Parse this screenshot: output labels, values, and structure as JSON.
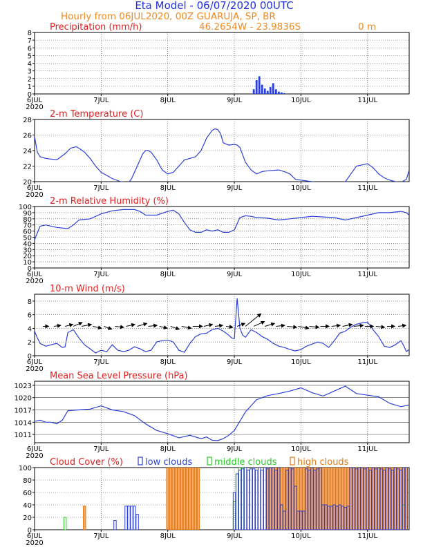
{
  "header": {
    "title": "Eta Model - 06/07/2020 00UTC",
    "subtitle": "Hourly from 06JUL2020, 00Z  GUARUJA, SP, BR",
    "location": "46.2654W - 23.9836S",
    "elevation": "0   m"
  },
  "colors": {
    "title": "#2030e0",
    "subtitle": "#f08a20",
    "panel_title": "#e02020",
    "line": "#2a3fd8",
    "bars": "#2a3fd8",
    "low": "#2a3fd8",
    "middle": "#22cc22",
    "high": "#f4a86a",
    "high_edge": "#e07a10",
    "overlap": "#9a5aa8",
    "arrow": "#000000",
    "grid": "#444444"
  },
  "x_axis": {
    "ticks": [
      {
        "t": 0,
        "label": "6JUL",
        "year": "2020"
      },
      {
        "t": 24,
        "label": "7JUL"
      },
      {
        "t": 48,
        "label": "8JUL"
      },
      {
        "t": 72,
        "label": "9JUL"
      },
      {
        "t": 96,
        "label": "10JUL"
      },
      {
        "t": 120,
        "label": "11JUL"
      }
    ],
    "range": [
      0,
      135
    ]
  },
  "chart_data": [
    {
      "id": "precip",
      "type": "bar",
      "title": "Precipitation (mm/h)",
      "ylim": [
        0,
        8
      ],
      "yticks": [
        0,
        1,
        2,
        3,
        4,
        5,
        6,
        7,
        8
      ],
      "x": [
        79,
        80,
        81,
        82,
        83,
        84,
        85,
        86,
        87,
        88,
        89,
        90
      ],
      "values": [
        0.6,
        1.8,
        2.3,
        1.2,
        0.7,
        0.4,
        0.9,
        1.4,
        0.6,
        0.3,
        0.2,
        0.1
      ]
    },
    {
      "id": "temp",
      "type": "line",
      "title": "2-m Temperature (C)",
      "ylim": [
        20,
        28
      ],
      "yticks": [
        20,
        22,
        24,
        26,
        28
      ],
      "x": [
        0,
        1,
        2,
        4,
        8,
        11,
        13,
        15,
        16,
        18,
        20,
        22,
        24,
        26,
        28,
        31,
        34,
        35,
        38,
        39,
        40,
        41,
        42,
        44,
        46,
        48,
        50,
        52,
        54,
        56,
        58,
        60,
        62,
        64,
        65,
        66,
        67,
        68,
        70,
        72,
        73,
        74,
        76,
        78,
        80,
        82,
        84,
        88,
        89,
        90,
        92,
        94,
        96,
        100,
        104,
        108,
        110,
        112,
        114,
        116,
        120,
        122,
        124,
        126,
        128,
        130,
        132,
        134,
        135
      ],
      "values": [
        25.8,
        23.8,
        23.2,
        23.0,
        22.8,
        23.6,
        24.3,
        24.5,
        24.3,
        23.8,
        23.0,
        22.0,
        21.2,
        20.8,
        20.4,
        20.0,
        19.9,
        20.4,
        22.8,
        23.6,
        24.0,
        24.0,
        23.8,
        22.8,
        21.5,
        21.0,
        21.2,
        22.0,
        22.8,
        23.0,
        23.2,
        24.0,
        25.6,
        26.6,
        26.8,
        26.7,
        26.2,
        25.0,
        24.7,
        24.8,
        24.7,
        24.4,
        22.5,
        21.5,
        21.0,
        21.3,
        21.4,
        21.5,
        21.4,
        21.3,
        21.0,
        20.3,
        20.2,
        20.0,
        19.8,
        19.6,
        19.8,
        20.0,
        21.0,
        22.0,
        22.3,
        21.8,
        21.0,
        20.5,
        20.2,
        20.0,
        19.9,
        20.3,
        21.5
      ]
    },
    {
      "id": "rh",
      "type": "line",
      "title": "2-m Relative Humidity (%)",
      "ylim": [
        0,
        100
      ],
      "yticks": [
        0,
        10,
        20,
        30,
        40,
        50,
        60,
        70,
        80,
        90,
        100
      ],
      "x": [
        0,
        2,
        4,
        8,
        12,
        14,
        16,
        20,
        24,
        28,
        32,
        36,
        38,
        40,
        44,
        48,
        50,
        52,
        54,
        56,
        58,
        60,
        62,
        64,
        66,
        68,
        70,
        72,
        74,
        76,
        78,
        80,
        84,
        88,
        92,
        96,
        100,
        104,
        108,
        112,
        116,
        120,
        124,
        128,
        132,
        134,
        135
      ],
      "values": [
        46,
        68,
        70,
        66,
        64,
        70,
        78,
        80,
        88,
        93,
        95,
        95,
        92,
        86,
        86,
        92,
        94,
        88,
        74,
        62,
        58,
        58,
        62,
        60,
        62,
        58,
        58,
        62,
        82,
        85,
        84,
        82,
        81,
        78,
        80,
        82,
        84,
        83,
        82,
        78,
        82,
        86,
        90,
        90,
        92,
        90,
        86
      ]
    },
    {
      "id": "wind",
      "type": "line",
      "title": "10-m Wind (m/s)",
      "ylim": [
        0,
        9
      ],
      "yticks": [
        0,
        2,
        4,
        6,
        8
      ],
      "x": [
        0,
        1,
        2,
        4,
        6,
        8,
        10,
        11,
        12,
        14,
        16,
        18,
        20,
        22,
        24,
        26,
        28,
        30,
        32,
        34,
        36,
        38,
        40,
        42,
        44,
        46,
        48,
        50,
        52,
        54,
        56,
        58,
        60,
        62,
        64,
        66,
        68,
        70,
        71,
        72,
        73,
        74,
        75,
        76,
        78,
        80,
        82,
        84,
        86,
        88,
        90,
        92,
        94,
        96,
        98,
        100,
        102,
        104,
        106,
        108,
        110,
        112,
        114,
        116,
        118,
        120,
        122,
        124,
        126,
        128,
        130,
        132,
        133,
        134,
        135
      ],
      "values": [
        3.6,
        2.6,
        1.8,
        1.4,
        1.6,
        1.8,
        1.2,
        1.3,
        3.4,
        3.8,
        2.6,
        1.6,
        1.0,
        0.4,
        0.8,
        0.6,
        1.6,
        0.8,
        0.6,
        0.8,
        1.3,
        1.0,
        0.6,
        0.8,
        2.0,
        2.2,
        2.3,
        2.0,
        0.8,
        0.5,
        1.8,
        2.8,
        3.2,
        3.3,
        3.8,
        4.0,
        3.6,
        3.0,
        2.6,
        2.5,
        8.4,
        4.0,
        3.0,
        2.7,
        3.8,
        3.4,
        2.8,
        2.4,
        1.8,
        1.4,
        1.2,
        0.9,
        0.7,
        0.9,
        1.4,
        1.7,
        2.0,
        1.8,
        1.2,
        2.2,
        3.3,
        3.6,
        4.2,
        4.6,
        4.8,
        4.9,
        3.8,
        2.8,
        1.4,
        1.2,
        1.6,
        2.2,
        1.5,
        0.6,
        0.9
      ],
      "arrows": [
        {
          "t": 3,
          "u": 0.6,
          "v": 0.0
        },
        {
          "t": 7,
          "u": 0.7,
          "v": 0.1
        },
        {
          "t": 11,
          "u": 0.8,
          "v": 0.2
        },
        {
          "t": 14,
          "u": 0.9,
          "v": 0.4
        },
        {
          "t": 17,
          "u": 1.0,
          "v": 0.2
        },
        {
          "t": 21,
          "u": 0.9,
          "v": -0.2
        },
        {
          "t": 25,
          "u": 0.8,
          "v": -0.3
        },
        {
          "t": 29,
          "u": 0.9,
          "v": -0.1
        },
        {
          "t": 33,
          "u": 0.9,
          "v": 0.2
        },
        {
          "t": 37,
          "u": 1.0,
          "v": 0.3
        },
        {
          "t": 41,
          "u": 0.9,
          "v": 0.1
        },
        {
          "t": 45,
          "u": 0.8,
          "v": -0.2
        },
        {
          "t": 49,
          "u": 0.9,
          "v": -0.3
        },
        {
          "t": 53,
          "u": 1.0,
          "v": -0.2
        },
        {
          "t": 57,
          "u": 1.0,
          "v": 0.0
        },
        {
          "t": 61,
          "u": 0.9,
          "v": 0.2
        },
        {
          "t": 65,
          "u": 0.8,
          "v": 0.1
        },
        {
          "t": 69,
          "u": 0.7,
          "v": -0.1
        },
        {
          "t": 73,
          "u": 0.8,
          "v": 0.3
        },
        {
          "t": 76,
          "u": 1.6,
          "v": 1.3
        },
        {
          "t": 79,
          "u": 1.1,
          "v": 0.5
        },
        {
          "t": 83,
          "u": 1.0,
          "v": 0.3
        },
        {
          "t": 87,
          "u": 0.9,
          "v": 0.1
        },
        {
          "t": 91,
          "u": 1.0,
          "v": -0.1
        },
        {
          "t": 95,
          "u": 1.1,
          "v": -0.2
        },
        {
          "t": 99,
          "u": 1.0,
          "v": -0.1
        },
        {
          "t": 103,
          "u": 0.9,
          "v": 0.0
        },
        {
          "t": 107,
          "u": 0.9,
          "v": 0.1
        },
        {
          "t": 111,
          "u": 1.0,
          "v": 0.2
        },
        {
          "t": 115,
          "u": 1.0,
          "v": 0.1
        },
        {
          "t": 119,
          "u": 0.9,
          "v": 0.0
        },
        {
          "t": 123,
          "u": 0.9,
          "v": -0.1
        },
        {
          "t": 127,
          "u": 0.8,
          "v": 0.0
        },
        {
          "t": 131,
          "u": 0.8,
          "v": 0.1
        }
      ]
    },
    {
      "id": "mslp",
      "type": "line",
      "title": "Mean Sea Level Pressure (hPa)",
      "ylim": [
        1009,
        1024
      ],
      "yticks": [
        1011,
        1014,
        1017,
        1020,
        1023
      ],
      "x": [
        0,
        2,
        4,
        6,
        8,
        10,
        12,
        16,
        20,
        24,
        28,
        32,
        36,
        40,
        44,
        48,
        52,
        56,
        60,
        62,
        64,
        66,
        68,
        70,
        72,
        76,
        80,
        84,
        88,
        92,
        96,
        100,
        104,
        108,
        112,
        116,
        120,
        124,
        128,
        132,
        135
      ],
      "values": [
        1014.2,
        1014.5,
        1014.0,
        1014.0,
        1013.6,
        1014.5,
        1016.8,
        1017.0,
        1017.2,
        1018.0,
        1017.0,
        1016.6,
        1015.6,
        1013.6,
        1012.0,
        1011.2,
        1010.2,
        1010.8,
        1010.0,
        1010.4,
        1009.6,
        1009.5,
        1010.0,
        1010.8,
        1012.0,
        1016.5,
        1019.5,
        1020.5,
        1021.0,
        1021.6,
        1022.4,
        1021.2,
        1020.4,
        1021.6,
        1022.8,
        1021.0,
        1020.6,
        1020.2,
        1018.6,
        1017.8,
        1018.2
      ]
    },
    {
      "id": "clouds",
      "type": "bar",
      "title": "Cloud Cover (%)",
      "legend": [
        "low clouds",
        "middle clouds",
        "high clouds"
      ],
      "ylim": [
        0,
        100
      ],
      "yticks": [
        0,
        20,
        40,
        60,
        80,
        100
      ],
      "low": [
        [
          29,
          15
        ],
        [
          33,
          38
        ],
        [
          34,
          38
        ],
        [
          35,
          38
        ],
        [
          36,
          38
        ],
        [
          37,
          25
        ],
        [
          72,
          60
        ],
        [
          73,
          90
        ],
        [
          74,
          96
        ],
        [
          75,
          98
        ],
        [
          76,
          100
        ],
        [
          77,
          96
        ],
        [
          78,
          98
        ],
        [
          79,
          98
        ],
        [
          80,
          96
        ],
        [
          81,
          100
        ],
        [
          82,
          96
        ],
        [
          83,
          100
        ],
        [
          84,
          98
        ],
        [
          85,
          100
        ],
        [
          86,
          100
        ],
        [
          87,
          96
        ],
        [
          88,
          100
        ],
        [
          89,
          40
        ],
        [
          90,
          30
        ],
        [
          91,
          96
        ],
        [
          92,
          100
        ],
        [
          93,
          98
        ],
        [
          94,
          70
        ],
        [
          95,
          30
        ],
        [
          96,
          30
        ],
        [
          97,
          30
        ],
        [
          98,
          98
        ],
        [
          99,
          96
        ],
        [
          100,
          100
        ],
        [
          101,
          96
        ],
        [
          102,
          98
        ],
        [
          103,
          100
        ],
        [
          104,
          40
        ],
        [
          105,
          40
        ],
        [
          106,
          38
        ],
        [
          107,
          38
        ],
        [
          108,
          40
        ],
        [
          109,
          38
        ],
        [
          110,
          40
        ],
        [
          111,
          38
        ],
        [
          112,
          36
        ],
        [
          113,
          38
        ],
        [
          114,
          100
        ],
        [
          115,
          100
        ],
        [
          116,
          98
        ],
        [
          117,
          100
        ],
        [
          118,
          100
        ],
        [
          119,
          98
        ],
        [
          120,
          100
        ],
        [
          121,
          96
        ],
        [
          122,
          100
        ],
        [
          123,
          98
        ],
        [
          124,
          100
        ],
        [
          125,
          98
        ],
        [
          126,
          96
        ],
        [
          127,
          100
        ],
        [
          128,
          98
        ],
        [
          129,
          96
        ],
        [
          130,
          100
        ],
        [
          131,
          98
        ],
        [
          132,
          96
        ],
        [
          133,
          100
        ],
        [
          134,
          100
        ]
      ],
      "middle": [
        [
          11,
          20
        ],
        [
          72,
          45
        ],
        [
          73,
          90
        ],
        [
          74,
          100
        ],
        [
          75,
          100
        ],
        [
          133,
          40
        ]
      ],
      "high": [
        [
          18,
          38
        ],
        [
          48,
          100
        ],
        [
          49,
          100
        ],
        [
          50,
          100
        ],
        [
          51,
          100
        ],
        [
          52,
          100
        ],
        [
          53,
          100
        ],
        [
          54,
          100
        ],
        [
          55,
          100
        ],
        [
          56,
          100
        ],
        [
          57,
          100
        ],
        [
          58,
          100
        ],
        [
          59,
          100
        ],
        [
          84,
          98
        ],
        [
          85,
          100
        ],
        [
          86,
          100
        ],
        [
          87,
          100
        ],
        [
          88,
          100
        ],
        [
          89,
          100
        ],
        [
          90,
          100
        ],
        [
          91,
          100
        ],
        [
          92,
          100
        ],
        [
          93,
          100
        ],
        [
          94,
          100
        ],
        [
          95,
          100
        ],
        [
          96,
          100
        ],
        [
          97,
          100
        ],
        [
          98,
          100
        ],
        [
          99,
          100
        ],
        [
          100,
          100
        ],
        [
          101,
          100
        ],
        [
          102,
          100
        ],
        [
          103,
          100
        ],
        [
          104,
          100
        ],
        [
          105,
          100
        ],
        [
          106,
          100
        ],
        [
          107,
          100
        ],
        [
          108,
          100
        ],
        [
          109,
          100
        ],
        [
          110,
          100
        ],
        [
          111,
          100
        ],
        [
          112,
          100
        ],
        [
          113,
          100
        ],
        [
          114,
          100
        ],
        [
          115,
          100
        ],
        [
          116,
          100
        ],
        [
          117,
          100
        ],
        [
          118,
          100
        ],
        [
          119,
          100
        ],
        [
          120,
          100
        ],
        [
          121,
          100
        ],
        [
          122,
          100
        ],
        [
          123,
          100
        ],
        [
          124,
          100
        ],
        [
          125,
          100
        ],
        [
          126,
          100
        ],
        [
          127,
          100
        ],
        [
          128,
          100
        ],
        [
          129,
          100
        ],
        [
          130,
          100
        ],
        [
          131,
          100
        ],
        [
          132,
          100
        ],
        [
          133,
          100
        ],
        [
          134,
          100
        ]
      ]
    }
  ]
}
